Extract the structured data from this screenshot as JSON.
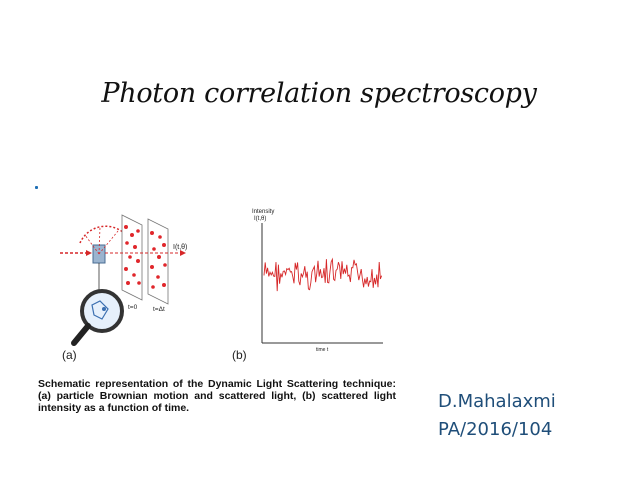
{
  "slide": {
    "title": "Photon correlation spectroscopy",
    "caption": "Schematic representation of the Dynamic Light Scattering technique: (a) particle Brownian motion and scattered light, (b) scattered light intensity as a function of time.",
    "author_name": "D.Mahalaxmi",
    "author_id": "PA/2016/104"
  },
  "figure_a": {
    "label": "(a)",
    "t0": "t=0",
    "tdt": "t=Δt",
    "intensity_label": "I(t,θ)"
  },
  "figure_b": {
    "label": "(b)",
    "y_label_1": "Intensity",
    "y_label_2": "I(t,θ)",
    "x_label": "time t"
  },
  "colors": {
    "title": "#111111",
    "author": "#1f4e79",
    "signal": "#d62728",
    "particles": "#e0262b"
  }
}
